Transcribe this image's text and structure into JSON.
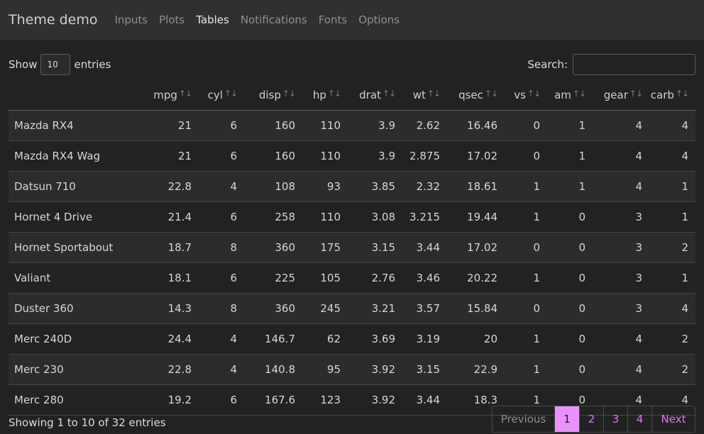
{
  "navbar": {
    "brand": "Theme demo",
    "tabs": [
      "Inputs",
      "Plots",
      "Tables",
      "Notifications",
      "Fonts",
      "Options"
    ],
    "active_tab": "Tables"
  },
  "controls": {
    "show_label": "Show",
    "page_length": "10",
    "entries_label": "entries",
    "search_label": "Search:",
    "search_value": ""
  },
  "table": {
    "columns": [
      "",
      "mpg",
      "cyl",
      "disp",
      "hp",
      "drat",
      "wt",
      "qsec",
      "vs",
      "am",
      "gear",
      "carb"
    ],
    "sort_icon": "sort-updown-icon",
    "rows": [
      [
        "Mazda RX4",
        "21",
        "6",
        "160",
        "110",
        "3.9",
        "2.62",
        "16.46",
        "0",
        "1",
        "4",
        "4"
      ],
      [
        "Mazda RX4 Wag",
        "21",
        "6",
        "160",
        "110",
        "3.9",
        "2.875",
        "17.02",
        "0",
        "1",
        "4",
        "4"
      ],
      [
        "Datsun 710",
        "22.8",
        "4",
        "108",
        "93",
        "3.85",
        "2.32",
        "18.61",
        "1",
        "1",
        "4",
        "1"
      ],
      [
        "Hornet 4 Drive",
        "21.4",
        "6",
        "258",
        "110",
        "3.08",
        "3.215",
        "19.44",
        "1",
        "0",
        "3",
        "1"
      ],
      [
        "Hornet Sportabout",
        "18.7",
        "8",
        "360",
        "175",
        "3.15",
        "3.44",
        "17.02",
        "0",
        "0",
        "3",
        "2"
      ],
      [
        "Valiant",
        "18.1",
        "6",
        "225",
        "105",
        "2.76",
        "3.46",
        "20.22",
        "1",
        "0",
        "3",
        "1"
      ],
      [
        "Duster 360",
        "14.3",
        "8",
        "360",
        "245",
        "3.21",
        "3.57",
        "15.84",
        "0",
        "0",
        "3",
        "4"
      ],
      [
        "Merc 240D",
        "24.4",
        "4",
        "146.7",
        "62",
        "3.69",
        "3.19",
        "20",
        "1",
        "0",
        "4",
        "2"
      ],
      [
        "Merc 230",
        "22.8",
        "4",
        "140.8",
        "95",
        "3.92",
        "3.15",
        "22.9",
        "1",
        "0",
        "4",
        "2"
      ],
      [
        "Merc 280",
        "19.2",
        "6",
        "167.6",
        "123",
        "3.92",
        "3.44",
        "18.3",
        "1",
        "0",
        "4",
        "4"
      ]
    ]
  },
  "footer": {
    "info": "Showing 1 to 10 of 32 entries",
    "previous": "Previous",
    "pages": [
      "1",
      "2",
      "3",
      "4"
    ],
    "current_page": "1",
    "next": "Next"
  },
  "colors": {
    "background": "#222222",
    "navbar": "#303030",
    "accent": "#ea92fb",
    "link": "#d77af2"
  }
}
